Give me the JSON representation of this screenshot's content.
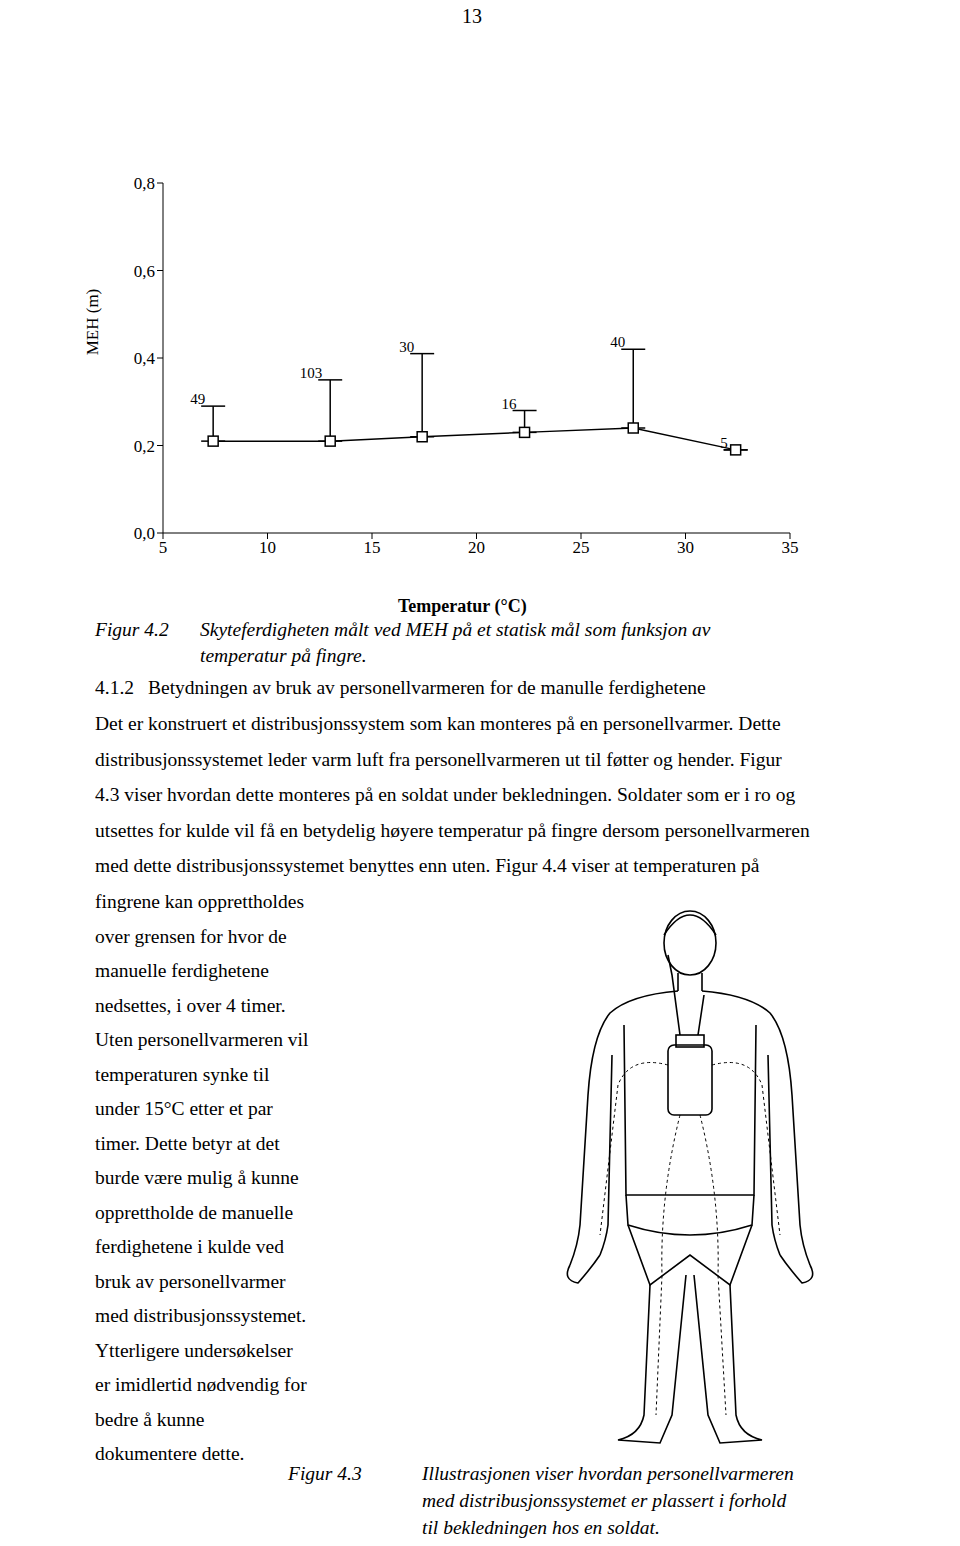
{
  "page_number": "13",
  "chart_data": {
    "type": "line",
    "x": [
      7.4,
      13,
      17.4,
      22.3,
      27.5,
      32.4
    ],
    "values": [
      0.21,
      0.21,
      0.22,
      0.23,
      0.24,
      0.19
    ],
    "errors": [
      0.08,
      0.14,
      0.19,
      0.05,
      0.18,
      0
    ],
    "counts": [
      49,
      103,
      30,
      16,
      40,
      5
    ],
    "x_label": "Temperatur (°C)",
    "y_label": "MEH (m)",
    "xlim": [
      5,
      35
    ],
    "xticks": [
      5,
      10,
      15,
      20,
      25,
      30,
      35
    ],
    "ylim": [
      0,
      0.8
    ],
    "yticks": [
      {
        "value": 0,
        "label": "0,0"
      },
      {
        "value": 0.2,
        "label": "0,2"
      },
      {
        "value": 0.4,
        "label": "0,4"
      },
      {
        "value": 0.6,
        "label": "0,6"
      },
      {
        "value": 0.8,
        "label": "0,8"
      }
    ],
    "grid": false,
    "marker": "square",
    "line_style": "solid",
    "color": "#000000"
  },
  "figure_4_2_caption": {
    "label": "Figur 4.2",
    "text": [
      "Skyteferdigheten målt ved MEH på et statisk mål som funksjon av",
      "temperatur på fingre."
    ]
  },
  "section": {
    "number": "4.1.2",
    "title": "Betydningen av bruk av personellvarmeren for de manulle ferdighetene"
  },
  "paragraph": [
    "Det er konstruert et distribusjonssystem som kan monteres på en personellvarmer. Dette",
    "distribusjonssystemet leder varm luft fra personellvarmeren ut til føtter og hender. Figur",
    "4.3 viser hvordan dette monteres på en soldat under bekledningen. Soldater som er i ro og",
    "utsettes for kulde vil få en betydelig høyere temperatur på fingre dersom personellvarmeren",
    "med dette distribusjonssystemet benyttes enn uten. Figur 4.4 viser at temperaturen på"
  ],
  "column_text": [
    "fingrene kan opprettholdes",
    "over grensen for hvor de",
    "manuelle ferdighetene",
    "nedsettes, i over 4 timer.",
    "Uten personellvarmeren vil",
    "temperaturen synke til",
    "under 15°C etter et par",
    "timer. Dette betyr at det",
    "burde være mulig å kunne",
    "opprettholde de manuelle",
    "ferdighetene i kulde ved",
    "bruk av personellvarmer",
    "med distribusjonssystemet.",
    "Ytterligere undersøkelser",
    "er imidlertid nødvendig for",
    "bedre å kunne",
    "dokumentere dette."
  ],
  "figure_4_3_caption": {
    "label": "Figur 4.3",
    "text": [
      "Illustrasjonen viser hvordan personellvarmeren",
      "med distribusjonssystemet er plassert i forhold",
      "til bekledningen hos en soldat."
    ]
  }
}
